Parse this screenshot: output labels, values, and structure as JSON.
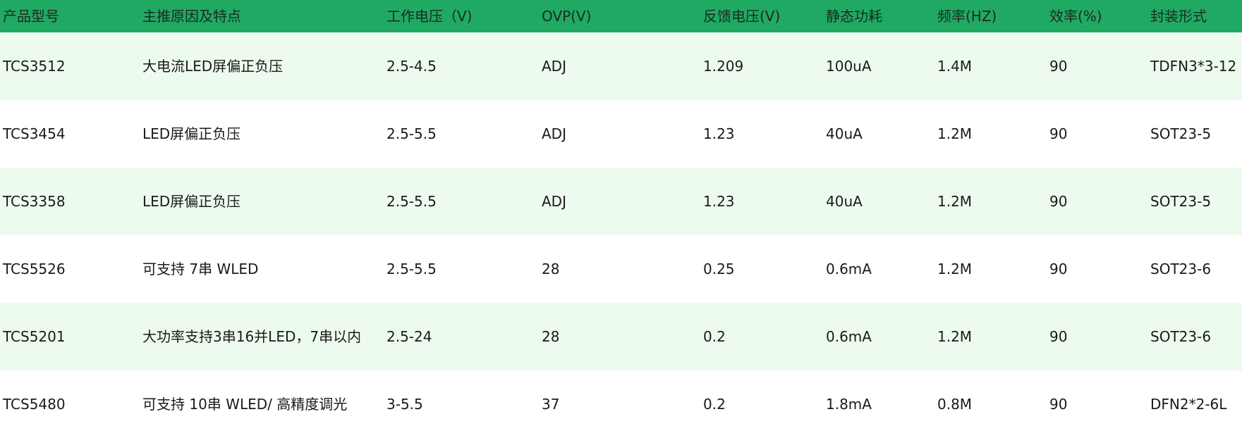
{
  "header": {
    "columns": [
      "产品型号",
      "主推原因及特点",
      "工作电压（V)",
      "OVP(V)",
      "反馈电压(V)",
      "静态功耗",
      "频率(HZ)",
      "效率(%)",
      "封装形式"
    ]
  },
  "rows": [
    [
      "TCS3512",
      "大电流LED屏偏正负压",
      "2.5-4.5",
      "ADJ",
      "1.209",
      "100uA",
      "1.4M",
      "90",
      "TDFN3*3-12"
    ],
    [
      "TCS3454",
      "LED屏偏正负压",
      "2.5-5.5",
      "ADJ",
      "1.23",
      "40uA",
      "1.2M",
      "90",
      "SOT23-5"
    ],
    [
      "TCS3358",
      "LED屏偏正负压",
      "2.5-5.5",
      "ADJ",
      "1.23",
      "40uA",
      "1.2M",
      "90",
      "SOT23-5"
    ],
    [
      "TCS5526",
      "可支持 7串 WLED",
      "2.5-5.5",
      "28",
      "0.25",
      "0.6mA",
      "1.2M",
      "90",
      "SOT23-6"
    ],
    [
      "TCS5201",
      "大功率支持3串16并LED，7串以内",
      "2.5-24",
      "28",
      "0.2",
      "0.6mA",
      "1.2M",
      "90",
      "SOT23-6"
    ],
    [
      "TCS5480",
      "可支持 10串 WLED/ 高精度调光",
      "3-5.5",
      "37",
      "0.2",
      "1.8mA",
      "0.8M",
      "90",
      "DFN2*2-6L"
    ]
  ],
  "colors": {
    "header_bg": "#20a962",
    "alt_row_bg": "#edfbee",
    "row_bg": "#ffffff"
  }
}
